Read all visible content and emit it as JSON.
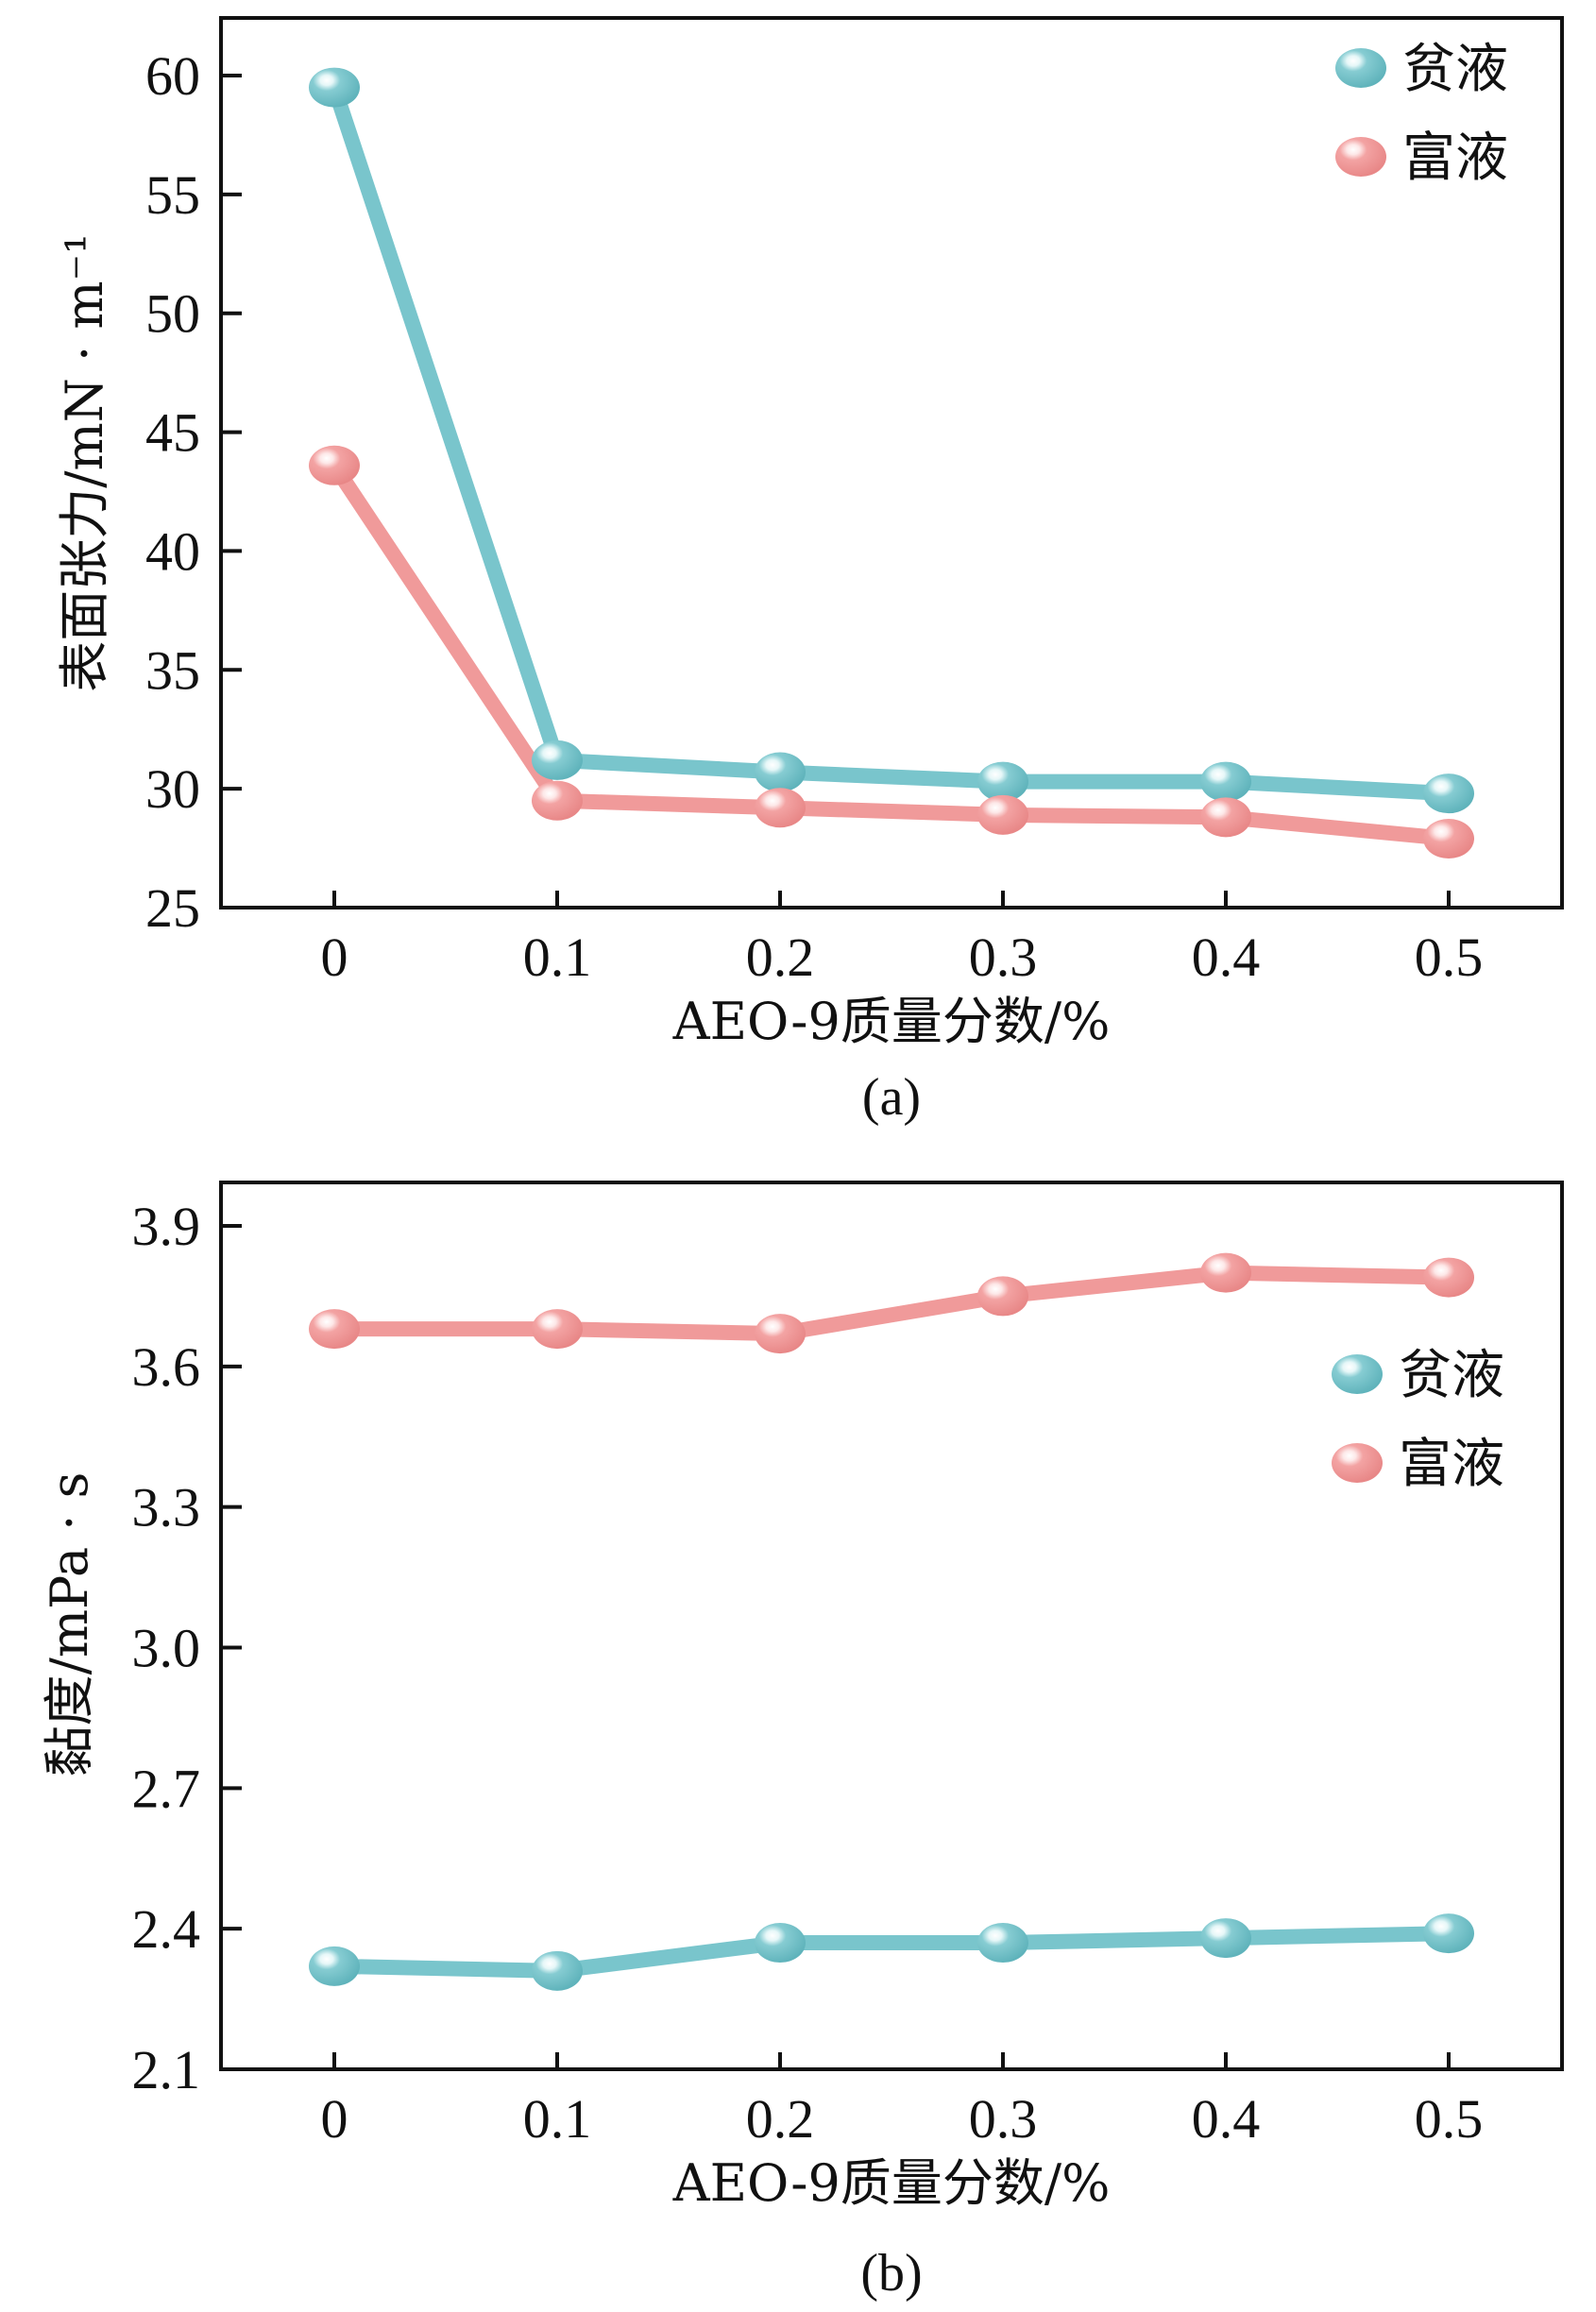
{
  "chart_data": [
    {
      "type": "line",
      "panel_label": "(a)",
      "title": "",
      "xlabel": "AEO-9质量分数/%",
      "ylabel": "表面张力/mN · m⁻¹",
      "x": [
        0,
        0.1,
        0.2,
        0.3,
        0.4,
        0.5
      ],
      "x_tick_labels": [
        "0",
        "0.1",
        "0.2",
        "0.3",
        "0.4",
        "0.5"
      ],
      "y_ticks": [
        25,
        30,
        35,
        40,
        45,
        50,
        55,
        60
      ],
      "y_tick_labels": [
        "25",
        "30",
        "35",
        "40",
        "45",
        "50",
        "55",
        "60"
      ],
      "ylim": [
        25,
        62.5
      ],
      "xlim": [
        -0.05,
        0.55
      ],
      "grid": false,
      "legend_position": "top-right",
      "series": [
        {
          "name": "贫液",
          "color": "#79c5cc",
          "values": [
            59.5,
            31.2,
            30.7,
            30.3,
            30.3,
            29.8
          ]
        },
        {
          "name": "富液",
          "color": "#f09a9a",
          "values": [
            43.6,
            29.5,
            29.2,
            28.9,
            28.8,
            27.9
          ]
        }
      ]
    },
    {
      "type": "line",
      "panel_label": "(b)",
      "title": "",
      "xlabel": "AEO-9质量分数/%",
      "ylabel": "黏度/mPa · s",
      "x": [
        0,
        0.1,
        0.2,
        0.3,
        0.4,
        0.5
      ],
      "x_tick_labels": [
        "0",
        "0.1",
        "0.2",
        "0.3",
        "0.4",
        "0.5"
      ],
      "y_ticks": [
        2.1,
        2.4,
        2.7,
        3.0,
        3.3,
        3.6,
        3.9
      ],
      "y_tick_labels": [
        "2.1",
        "2.4",
        "2.7",
        "3.0",
        "3.3",
        "3.6",
        "3.9"
      ],
      "ylim": [
        2.1,
        4.0
      ],
      "xlim": [
        -0.05,
        0.55
      ],
      "grid": false,
      "legend_position": "right",
      "series": [
        {
          "name": "贫液",
          "color": "#79c5cc",
          "values": [
            2.32,
            2.31,
            2.37,
            2.37,
            2.38,
            2.39
          ]
        },
        {
          "name": "富液",
          "color": "#f09a9a",
          "values": [
            3.68,
            3.68,
            3.67,
            3.75,
            3.8,
            3.79
          ]
        }
      ]
    }
  ]
}
